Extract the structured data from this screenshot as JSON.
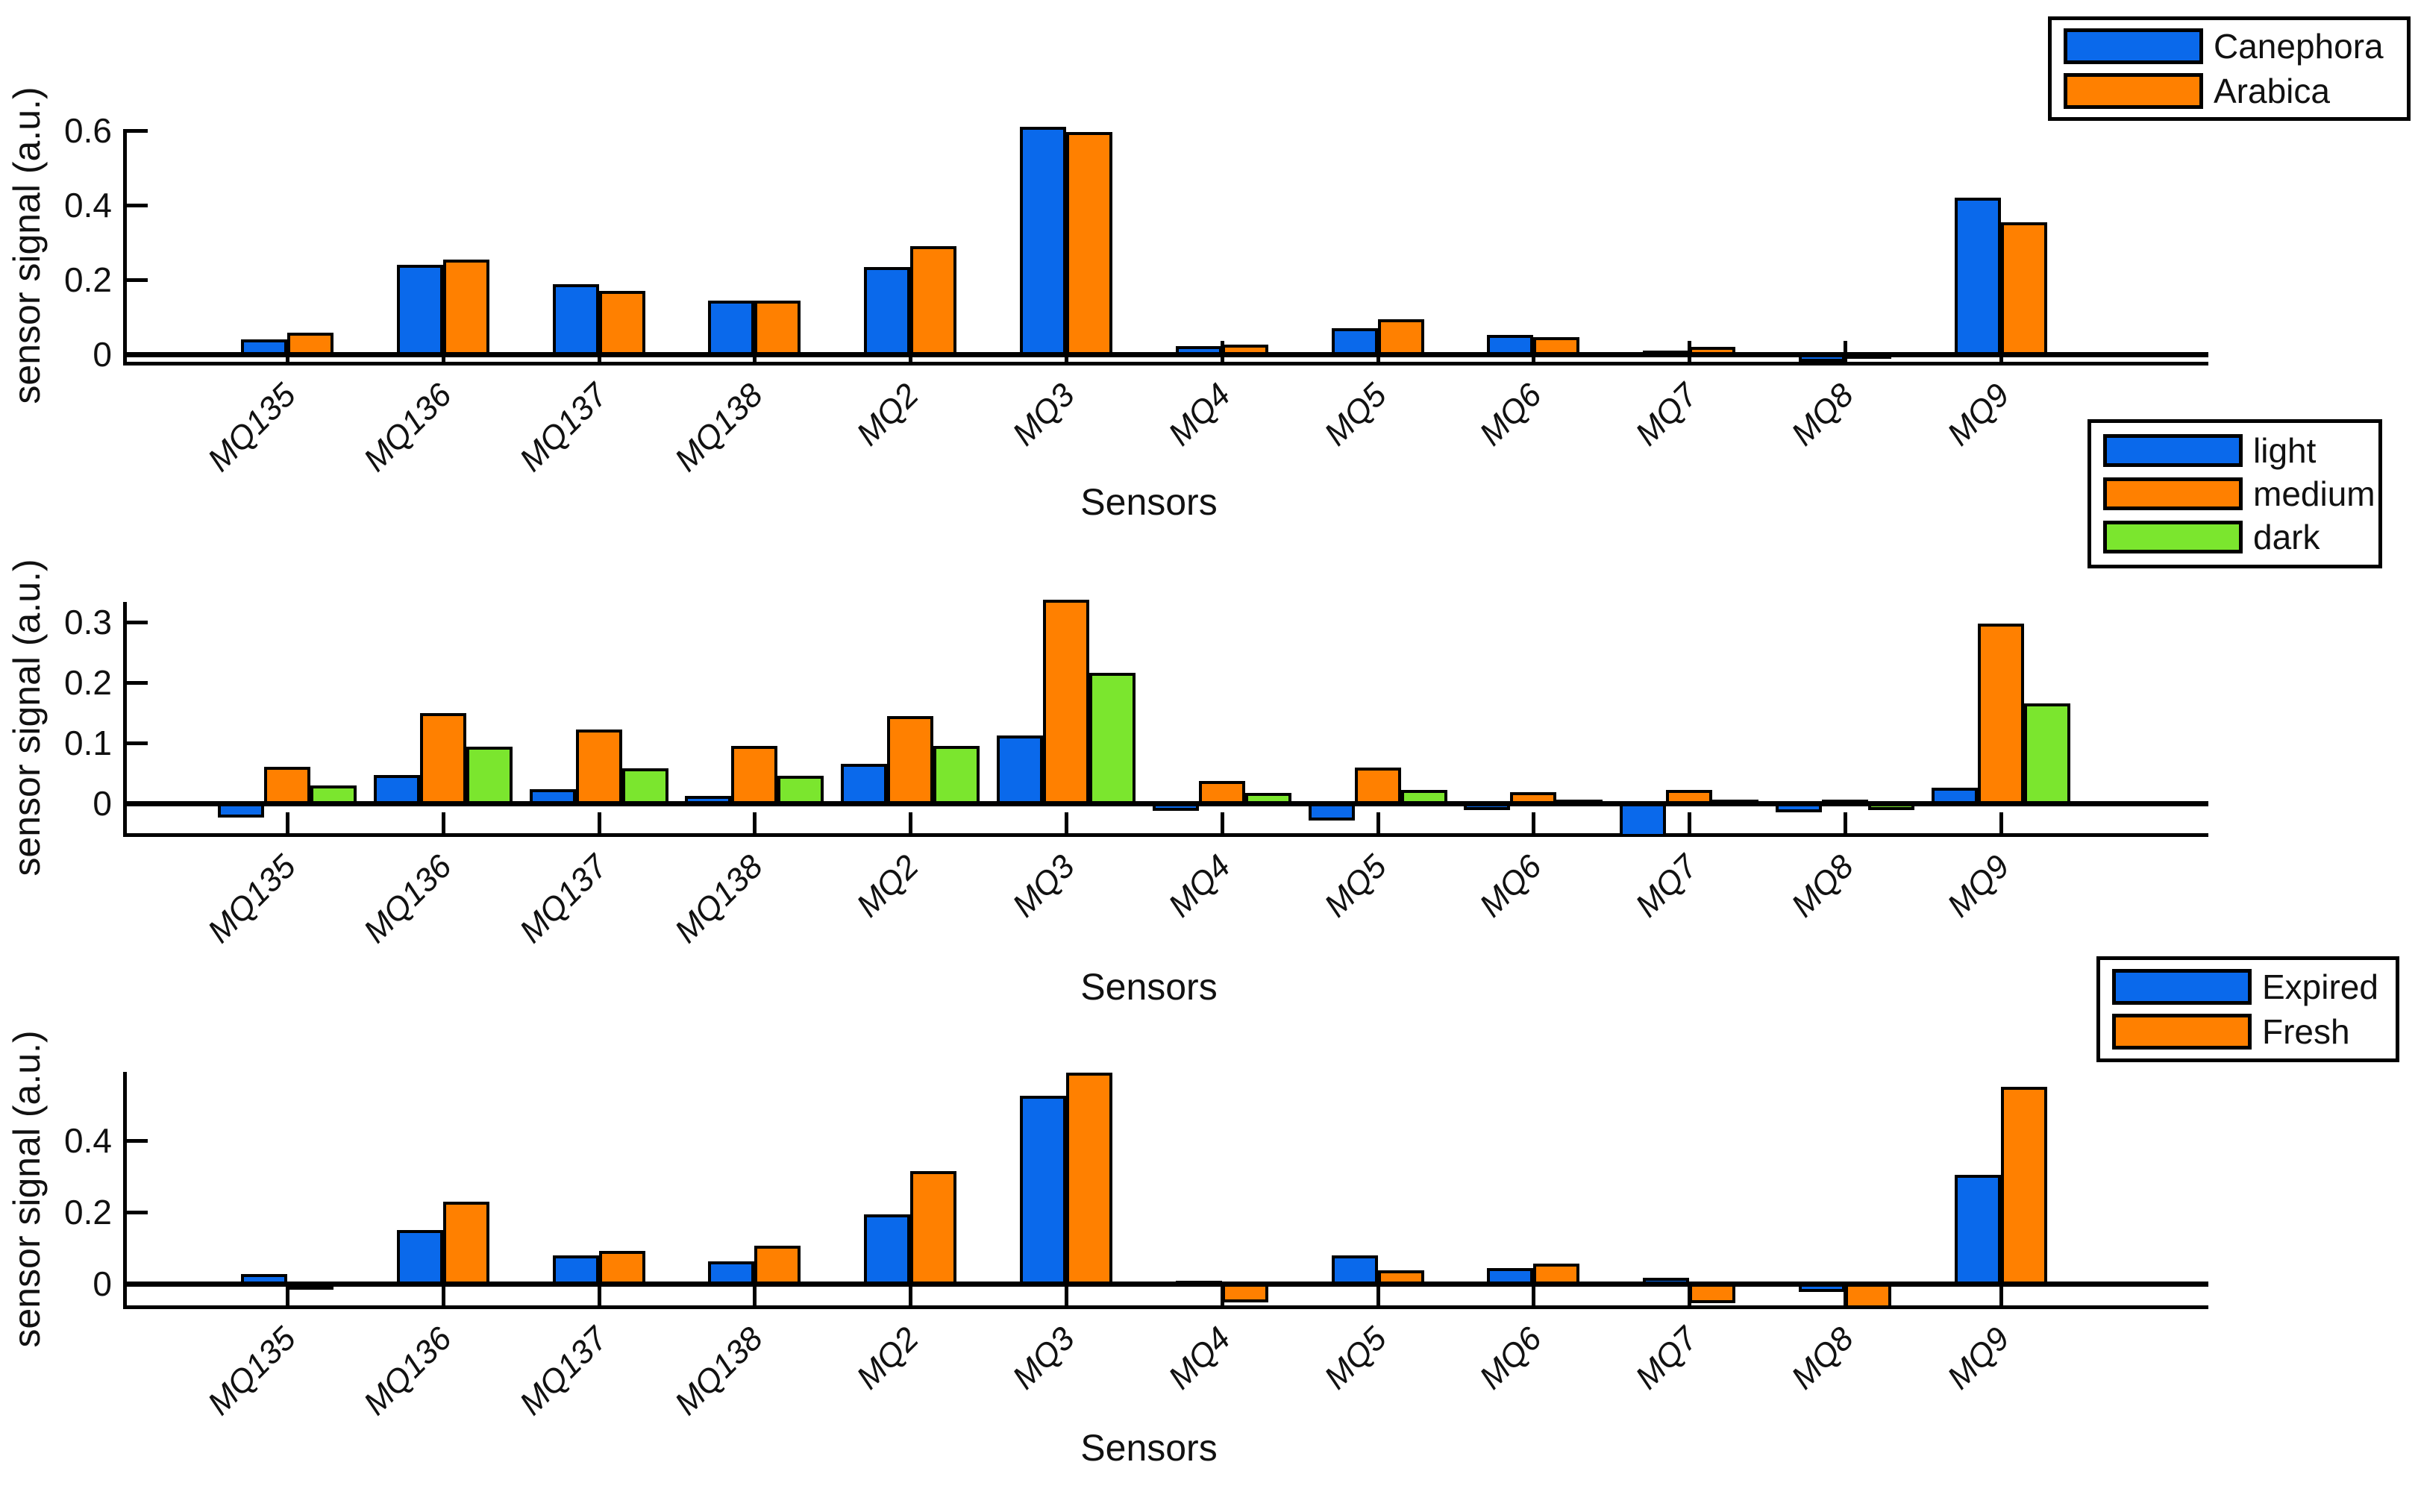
{
  "figure": {
    "background": "#ffffff",
    "y_axis_label": "sensor signal (a.u.)",
    "x_axis_label": "Sensors"
  },
  "palette": {
    "blue": "#0A69EB",
    "orange": "#FF8000",
    "green": "#7BE62E",
    "axis_black": "#000000"
  },
  "chart_data": [
    {
      "type": "bar",
      "title": "",
      "xlabel": "Sensors",
      "ylabel": "sensor signal (a.u.)",
      "categories": [
        "MQ135",
        "MQ136",
        "MQ137",
        "MQ138",
        "MQ2",
        "MQ3",
        "MQ4",
        "MQ5",
        "MQ6",
        "MQ7",
        "MQ8",
        "MQ9"
      ],
      "y_ticks": [
        {
          "v": 0,
          "label": "0"
        },
        {
          "v": 0.2,
          "label": "0.2"
        },
        {
          "v": 0.4,
          "label": "0.4"
        },
        {
          "v": 0.6,
          "label": "0.6"
        }
      ],
      "ylim": [
        -0.02,
        0.605
      ],
      "grid": false,
      "legend_position": "outside-top-right",
      "series": [
        {
          "name": "Canephora",
          "color_key": "blue",
          "values": [
            0.036,
            0.235,
            0.183,
            0.139,
            0.229,
            0.605,
            0.018,
            0.065,
            0.048,
            0.005,
            -0.012,
            0.416
          ]
        },
        {
          "name": "Arabica",
          "color_key": "orange",
          "values": [
            0.053,
            0.25,
            0.165,
            0.14,
            0.285,
            0.592,
            0.022,
            0.09,
            0.042,
            0.015,
            -0.004,
            0.35
          ]
        }
      ]
    },
    {
      "type": "bar",
      "title": "",
      "xlabel": "Sensors",
      "ylabel": "sensor signal (a.u.)",
      "categories": [
        "MQ135",
        "MQ136",
        "MQ137",
        "MQ138",
        "MQ2",
        "MQ3",
        "MQ4",
        "MQ5",
        "MQ6",
        "MQ7",
        "MQ8",
        "MQ9"
      ],
      "y_ticks": [
        {
          "v": 0,
          "label": "0"
        },
        {
          "v": 0.1,
          "label": "0.1"
        },
        {
          "v": 0.2,
          "label": "0.2"
        },
        {
          "v": 0.3,
          "label": "0.3"
        }
      ],
      "ylim": [
        -0.05,
        0.335
      ],
      "grid": false,
      "legend_position": "outside-top-right",
      "series": [
        {
          "name": "light",
          "color_key": "blue",
          "values": [
            -0.018,
            0.045,
            0.021,
            0.01,
            0.063,
            0.11,
            -0.007,
            -0.024,
            -0.006,
            -0.05,
            -0.01,
            0.023
          ]
        },
        {
          "name": "medium",
          "color_key": "orange",
          "values": [
            0.058,
            0.147,
            0.12,
            0.093,
            0.142,
            0.335,
            0.035,
            0.057,
            0.016,
            0.02,
            0.004,
            0.295
          ]
        },
        {
          "name": "dark",
          "color_key": "green",
          "values": [
            0.027,
            0.091,
            0.055,
            0.043,
            0.093,
            0.214,
            0.015,
            0.02,
            0.004,
            0.004,
            -0.006,
            0.163
          ]
        }
      ]
    },
    {
      "type": "bar",
      "title": "",
      "xlabel": "Sensors",
      "ylabel": "sensor signal (a.u.)",
      "categories": [
        "MQ135",
        "MQ136",
        "MQ137",
        "MQ138",
        "MQ2",
        "MQ3",
        "MQ4",
        "MQ5",
        "MQ6",
        "MQ7",
        "MQ8",
        "MQ9"
      ],
      "y_ticks": [
        {
          "v": 0,
          "label": "0"
        },
        {
          "v": 0.2,
          "label": "0.2"
        },
        {
          "v": 0.4,
          "label": "0.4"
        }
      ],
      "ylim": [
        -0.06,
        0.59
      ],
      "grid": false,
      "legend_position": "outside-top-right",
      "series": [
        {
          "name": "Expired",
          "color_key": "blue",
          "values": [
            0.022,
            0.145,
            0.075,
            0.058,
            0.19,
            0.52,
            0.003,
            0.075,
            0.04,
            0.012,
            -0.015,
            0.3
          ]
        },
        {
          "name": "Fresh",
          "color_key": "orange",
          "values": [
            -0.008,
            0.225,
            0.088,
            0.103,
            0.31,
            0.585,
            -0.043,
            0.033,
            0.053,
            -0.045,
            -0.06,
            0.545
          ]
        }
      ]
    }
  ]
}
